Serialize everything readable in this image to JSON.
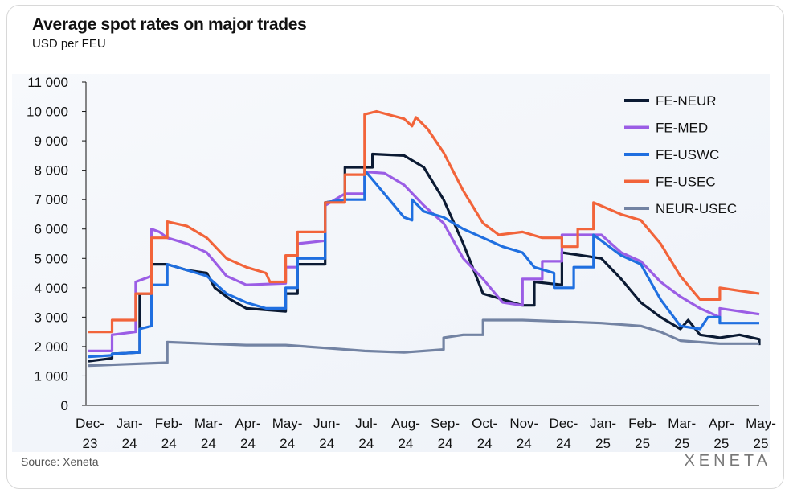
{
  "title": "Average spot rates on major trades",
  "subtitle": "USD per FEU",
  "source": "Source: Xeneta",
  "logo": "XENETA",
  "chart_data": {
    "type": "line",
    "title": "Average spot rates on major trades",
    "ylabel": "USD per FEU",
    "ylim": [
      0,
      11000
    ],
    "yticks": [
      0,
      1000,
      2000,
      3000,
      4000,
      5000,
      6000,
      7000,
      8000,
      9000,
      10000,
      11000
    ],
    "ytick_labels": [
      "0",
      "1 000",
      "2 000",
      "3 000",
      "4 000",
      "5 000",
      "6 000",
      "7 000",
      "8 000",
      "9 000",
      "10 000",
      "11 000"
    ],
    "x_categories": [
      [
        "Dec-",
        "23"
      ],
      [
        "Jan-",
        "24"
      ],
      [
        "Feb-",
        "24"
      ],
      [
        "Mar-",
        "24"
      ],
      [
        "Apr-",
        "24"
      ],
      [
        "May-",
        "24"
      ],
      [
        "Jun-",
        "24"
      ],
      [
        "Jul-",
        "24"
      ],
      [
        "Aug-",
        "24"
      ],
      [
        "Sep-",
        "24"
      ],
      [
        "Oct-",
        "24"
      ],
      [
        "Nov-",
        "24"
      ],
      [
        "Dec-",
        "24"
      ],
      [
        "Jan-",
        "25"
      ],
      [
        "Feb-",
        "25"
      ],
      [
        "Mar-",
        "25"
      ],
      [
        "Apr-",
        "25"
      ],
      [
        "May-",
        "25"
      ]
    ],
    "x_unit": "months since Dec-23",
    "legend_position": "top-right",
    "series": [
      {
        "name": "FE-NEUR",
        "color": "#0b1a33",
        "points": [
          [
            0,
            1500
          ],
          [
            0.6,
            1600
          ],
          [
            0.6,
            1750
          ],
          [
            1.3,
            1800
          ],
          [
            1.3,
            3800
          ],
          [
            1.6,
            3800
          ],
          [
            1.6,
            4800
          ],
          [
            2,
            4800
          ],
          [
            2.5,
            4600
          ],
          [
            3,
            4500
          ],
          [
            3.2,
            4000
          ],
          [
            3.6,
            3600
          ],
          [
            4,
            3300
          ],
          [
            5,
            3200
          ],
          [
            5,
            3800
          ],
          [
            5.3,
            3800
          ],
          [
            5.3,
            4800
          ],
          [
            6,
            4800
          ],
          [
            6,
            6900
          ],
          [
            6.5,
            7000
          ],
          [
            6.5,
            8100
          ],
          [
            7.2,
            8100
          ],
          [
            7.2,
            8550
          ],
          [
            8,
            8500
          ],
          [
            8.5,
            8100
          ],
          [
            9,
            7000
          ],
          [
            9.5,
            5500
          ],
          [
            10,
            3800
          ],
          [
            10.5,
            3600
          ],
          [
            11,
            3400
          ],
          [
            11.3,
            3400
          ],
          [
            11.3,
            4200
          ],
          [
            12,
            4100
          ],
          [
            12,
            5200
          ],
          [
            12.5,
            5100
          ],
          [
            13,
            5000
          ],
          [
            13.5,
            4300
          ],
          [
            14,
            3500
          ],
          [
            14.5,
            3000
          ],
          [
            15,
            2600
          ],
          [
            15.2,
            2900
          ],
          [
            15.5,
            2400
          ],
          [
            16,
            2300
          ],
          [
            16.5,
            2400
          ],
          [
            17,
            2250
          ],
          [
            17,
            2050
          ]
        ]
      },
      {
        "name": "FE-MED",
        "color": "#9b5de5",
        "points": [
          [
            0,
            1850
          ],
          [
            0.6,
            1850
          ],
          [
            0.6,
            2400
          ],
          [
            1.2,
            2500
          ],
          [
            1.2,
            4200
          ],
          [
            1.6,
            4400
          ],
          [
            1.6,
            6000
          ],
          [
            1.8,
            5900
          ],
          [
            2,
            5700
          ],
          [
            2.5,
            5500
          ],
          [
            3,
            5200
          ],
          [
            3.5,
            4400
          ],
          [
            4,
            4100
          ],
          [
            5,
            4150
          ],
          [
            5,
            4700
          ],
          [
            5.3,
            4700
          ],
          [
            5.3,
            5500
          ],
          [
            6,
            5600
          ],
          [
            6,
            6800
          ],
          [
            6.5,
            7200
          ],
          [
            7,
            7200
          ],
          [
            7,
            7950
          ],
          [
            7.5,
            7900
          ],
          [
            8,
            7500
          ],
          [
            8.5,
            6800
          ],
          [
            9,
            6200
          ],
          [
            9.5,
            5000
          ],
          [
            10,
            4300
          ],
          [
            10.5,
            3500
          ],
          [
            11,
            3400
          ],
          [
            11,
            4300
          ],
          [
            11.5,
            4300
          ],
          [
            11.5,
            4900
          ],
          [
            12,
            4900
          ],
          [
            12,
            5800
          ],
          [
            13,
            5800
          ],
          [
            13.5,
            5200
          ],
          [
            14,
            4900
          ],
          [
            14.5,
            4200
          ],
          [
            15,
            3700
          ],
          [
            15.5,
            3300
          ],
          [
            16,
            3000
          ],
          [
            16,
            3300
          ],
          [
            16.5,
            3200
          ],
          [
            17,
            3100
          ]
        ]
      },
      {
        "name": "FE-USWC",
        "color": "#1f6fe0",
        "points": [
          [
            0,
            1650
          ],
          [
            0.6,
            1700
          ],
          [
            0.6,
            1750
          ],
          [
            1.3,
            1800
          ],
          [
            1.3,
            2600
          ],
          [
            1.6,
            2700
          ],
          [
            1.6,
            4100
          ],
          [
            2,
            4100
          ],
          [
            2,
            4800
          ],
          [
            2.5,
            4600
          ],
          [
            3,
            4400
          ],
          [
            3.5,
            3800
          ],
          [
            4,
            3500
          ],
          [
            4.5,
            3300
          ],
          [
            5,
            3300
          ],
          [
            5,
            4000
          ],
          [
            5.3,
            4000
          ],
          [
            5.3,
            5000
          ],
          [
            6,
            5000
          ],
          [
            6,
            6900
          ],
          [
            6.5,
            7000
          ],
          [
            7,
            7000
          ],
          [
            7,
            8000
          ],
          [
            7.5,
            7200
          ],
          [
            8,
            6400
          ],
          [
            8.2,
            6300
          ],
          [
            8.2,
            7000
          ],
          [
            8.5,
            6600
          ],
          [
            9,
            6400
          ],
          [
            9.5,
            6000
          ],
          [
            10,
            5700
          ],
          [
            10.5,
            5400
          ],
          [
            11,
            5200
          ],
          [
            11.3,
            4700
          ],
          [
            11.8,
            4500
          ],
          [
            11.8,
            4000
          ],
          [
            12.3,
            4000
          ],
          [
            12.3,
            4700
          ],
          [
            12.8,
            4700
          ],
          [
            12.8,
            5800
          ],
          [
            13.5,
            5100
          ],
          [
            14,
            4800
          ],
          [
            14.5,
            3600
          ],
          [
            15,
            2700
          ],
          [
            15.5,
            2600
          ],
          [
            15.7,
            3000
          ],
          [
            16,
            3000
          ],
          [
            16,
            2800
          ],
          [
            17,
            2800
          ]
        ]
      },
      {
        "name": "FE-USEC",
        "color": "#f2643a",
        "points": [
          [
            0,
            2500
          ],
          [
            0.6,
            2500
          ],
          [
            0.6,
            2900
          ],
          [
            1.2,
            2900
          ],
          [
            1.2,
            3800
          ],
          [
            1.6,
            3800
          ],
          [
            1.6,
            5700
          ],
          [
            2,
            5700
          ],
          [
            2,
            6250
          ],
          [
            2.5,
            6100
          ],
          [
            3,
            5700
          ],
          [
            3.5,
            5000
          ],
          [
            4,
            4700
          ],
          [
            4.5,
            4500
          ],
          [
            4.6,
            4200
          ],
          [
            5,
            4200
          ],
          [
            5,
            5100
          ],
          [
            5.3,
            5100
          ],
          [
            5.3,
            5900
          ],
          [
            6,
            5900
          ],
          [
            6,
            6900
          ],
          [
            6.5,
            6900
          ],
          [
            6.5,
            7850
          ],
          [
            7,
            7850
          ],
          [
            7,
            9900
          ],
          [
            7.3,
            10000
          ],
          [
            8,
            9750
          ],
          [
            8.2,
            9500
          ],
          [
            8.3,
            9800
          ],
          [
            8.6,
            9400
          ],
          [
            9,
            8600
          ],
          [
            9.5,
            7300
          ],
          [
            10,
            6200
          ],
          [
            10.4,
            5800
          ],
          [
            11,
            5900
          ],
          [
            11.5,
            5700
          ],
          [
            12,
            5700
          ],
          [
            12,
            5400
          ],
          [
            12.4,
            5400
          ],
          [
            12.4,
            6000
          ],
          [
            12.8,
            6000
          ],
          [
            12.8,
            6900
          ],
          [
            13.5,
            6500
          ],
          [
            14,
            6300
          ],
          [
            14.5,
            5500
          ],
          [
            15,
            4400
          ],
          [
            15.5,
            3600
          ],
          [
            16,
            3600
          ],
          [
            16,
            4000
          ],
          [
            16.5,
            3900
          ],
          [
            17,
            3800
          ]
        ]
      },
      {
        "name": "NEUR-USEC",
        "color": "#7383a3",
        "points": [
          [
            0,
            1350
          ],
          [
            1,
            1400
          ],
          [
            2,
            1450
          ],
          [
            2,
            2150
          ],
          [
            3,
            2100
          ],
          [
            4,
            2050
          ],
          [
            5,
            2050
          ],
          [
            6,
            1950
          ],
          [
            7,
            1850
          ],
          [
            8,
            1800
          ],
          [
            9,
            1900
          ],
          [
            9,
            2300
          ],
          [
            9.5,
            2400
          ],
          [
            10,
            2400
          ],
          [
            10,
            2900
          ],
          [
            11,
            2900
          ],
          [
            12,
            2850
          ],
          [
            13,
            2800
          ],
          [
            14,
            2700
          ],
          [
            14.5,
            2500
          ],
          [
            15,
            2200
          ],
          [
            16,
            2100
          ],
          [
            17,
            2100
          ]
        ]
      }
    ]
  }
}
